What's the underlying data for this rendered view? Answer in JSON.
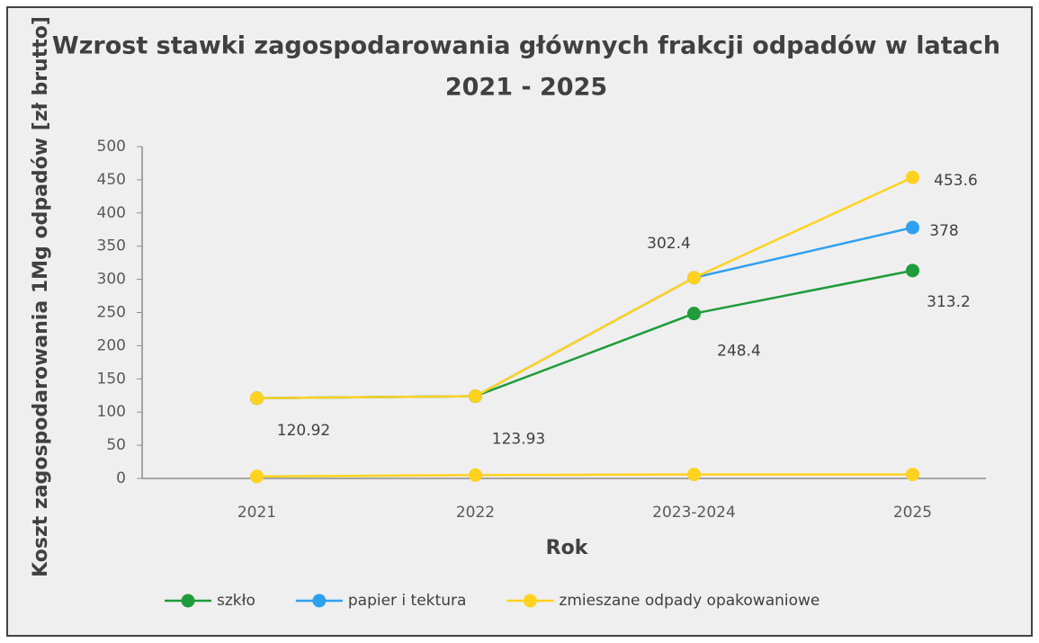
{
  "chart_data": {
    "type": "line",
    "title": "Wzrost stawki zagospodarowania głównych frakcji odpadów w latach",
    "subtitle": "2021 - 2025",
    "y_label": "Koszt zagospodarowania 1Mg odpadów [zł brutto]",
    "x_label": "Rok",
    "categories": [
      "2021",
      "2022",
      "2023-2024",
      "2025"
    ],
    "series": [
      {
        "name": "szkło",
        "color": "#1e9b3a",
        "values": [
          120.92,
          123.93,
          248.4,
          313.2
        ],
        "show_labels": [
          false,
          false,
          true,
          true
        ]
      },
      {
        "name": "papier i tektura",
        "color": "#2ea0f0",
        "values": [
          120.92,
          123.93,
          302.4,
          378
        ],
        "show_labels": [
          false,
          false,
          false,
          true
        ]
      },
      {
        "name": "zmieszane odpady opakowaniowe",
        "color": "#ffd21f",
        "values": [
          120.92,
          123.93,
          302.4,
          453.6
        ],
        "show_labels": [
          true,
          true,
          true,
          true
        ]
      },
      {
        "color": "#ffd21f",
        "values": [
          3,
          5,
          6,
          6
        ]
      }
    ],
    "ylim": [
      0,
      500
    ],
    "yticks": [
      0,
      50,
      100,
      150,
      200,
      250,
      300,
      350,
      400,
      450,
      500
    ],
    "grid": false,
    "legend": "bottom"
  }
}
